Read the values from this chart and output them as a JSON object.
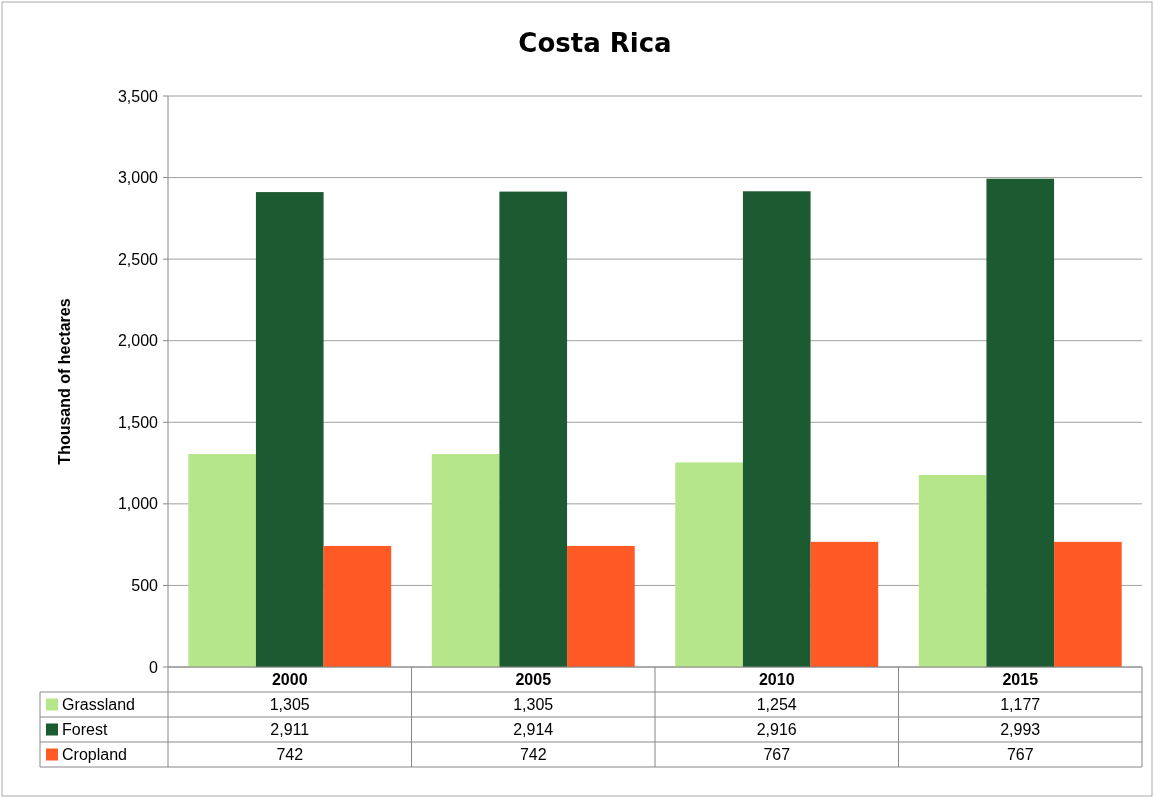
{
  "chart_data": {
    "type": "bar",
    "title": "Costa Rica",
    "ylabel": "Thousand of hectares",
    "categories": [
      "2000",
      "2005",
      "2010",
      "2015"
    ],
    "series": [
      {
        "name": "Grassland",
        "color": "#b6e68a",
        "values": [
          1305,
          1305,
          1254,
          1177
        ],
        "value_labels": [
          "1,305",
          "1,305",
          "1,254",
          "1,177"
        ]
      },
      {
        "name": "Forest",
        "color": "#1c5a32",
        "values": [
          2911,
          2914,
          2916,
          2993
        ],
        "value_labels": [
          "2,911",
          "2,914",
          "2,916",
          "2,993"
        ]
      },
      {
        "name": "Cropland",
        "color": "#ff5a26",
        "values": [
          742,
          742,
          767,
          767
        ],
        "value_labels": [
          "742",
          "742",
          "767",
          "767"
        ]
      }
    ],
    "ylim": [
      0,
      3500
    ],
    "yticks": [
      {
        "value": 0,
        "label": "0"
      },
      {
        "value": 500,
        "label": "500"
      },
      {
        "value": 1000,
        "label": "1,000"
      },
      {
        "value": 1500,
        "label": "1,500"
      },
      {
        "value": 2000,
        "label": "2,000"
      },
      {
        "value": 2500,
        "label": "2,500"
      },
      {
        "value": 3000,
        "label": "3,000"
      },
      {
        "value": 3500,
        "label": "3,500"
      }
    ],
    "grid": "y",
    "legend": "bottom"
  }
}
